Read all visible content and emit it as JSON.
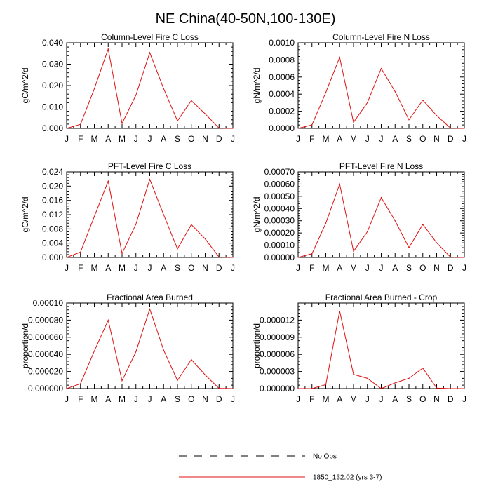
{
  "figure_title": "NE China(40-50N,100-130E)",
  "legend": {
    "entries": [
      {
        "label": "No Obs",
        "color": "#000000",
        "style": "dashed"
      },
      {
        "label": "1850_132.02 (yrs 3-7)",
        "color": "#e01010",
        "style": "solid"
      }
    ]
  },
  "chart_data": [
    {
      "type": "line",
      "title": "Column-Level Fire C Loss",
      "xlabel": "",
      "ylabel": "gC/m^2/d",
      "categories": [
        "J",
        "F",
        "M",
        "A",
        "M",
        "J",
        "J",
        "A",
        "S",
        "O",
        "N",
        "D",
        "J"
      ],
      "ylim": [
        0,
        0.04
      ],
      "yticks": [
        0,
        0.01,
        0.02,
        0.03,
        0.04
      ],
      "ytick_labels": [
        "0.000",
        "0.010",
        "0.020",
        "0.030",
        "0.040"
      ],
      "grid": false,
      "series": [
        {
          "name": "1850_132.02 (yrs 3-7)",
          "color": "#e01010",
          "values": [
            0.0,
            0.0019,
            0.0185,
            0.0371,
            0.0023,
            0.0155,
            0.0354,
            0.0186,
            0.0035,
            0.013,
            0.0068,
            0.0001,
            0.0
          ]
        }
      ]
    },
    {
      "type": "line",
      "title": "Column-Level Fire N Loss",
      "xlabel": "",
      "ylabel": "gN/m^2/d",
      "categories": [
        "J",
        "F",
        "M",
        "A",
        "M",
        "J",
        "J",
        "A",
        "S",
        "O",
        "N",
        "D",
        "J"
      ],
      "ylim": [
        0,
        0.001
      ],
      "yticks": [
        0,
        0.0002,
        0.0004,
        0.0006,
        0.0008,
        0.001
      ],
      "ytick_labels": [
        "0.0000",
        "0.0002",
        "0.0004",
        "0.0006",
        "0.0008",
        "0.0010"
      ],
      "grid": false,
      "series": [
        {
          "name": "1850_132.02 (yrs 3-7)",
          "color": "#e01010",
          "values": [
            0.0,
            4e-05,
            0.00042,
            0.00083,
            7e-05,
            0.0003,
            0.0007,
            0.00043,
            0.0001,
            0.00033,
            0.00015,
            3e-06,
            0.0
          ]
        }
      ]
    },
    {
      "type": "line",
      "title": "PFT-Level Fire C Loss",
      "xlabel": "",
      "ylabel": "gC/m^2/d",
      "categories": [
        "J",
        "F",
        "M",
        "A",
        "M",
        "J",
        "J",
        "A",
        "S",
        "O",
        "N",
        "D",
        "J"
      ],
      "ylim": [
        0,
        0.024
      ],
      "yticks": [
        0,
        0.004,
        0.008,
        0.012,
        0.016,
        0.02,
        0.024
      ],
      "ytick_labels": [
        "0.000",
        "0.004",
        "0.008",
        "0.012",
        "0.016",
        "0.020",
        "0.024"
      ],
      "grid": false,
      "series": [
        {
          "name": "1850_132.02 (yrs 3-7)",
          "color": "#e01010",
          "values": [
            0.0,
            0.0015,
            0.0115,
            0.0214,
            0.0011,
            0.0093,
            0.0219,
            0.012,
            0.0024,
            0.0092,
            0.0052,
            0.0001,
            0.0
          ]
        }
      ]
    },
    {
      "type": "line",
      "title": "PFT-Level Fire N Loss",
      "xlabel": "",
      "ylabel": "gN/m^2/d",
      "categories": [
        "J",
        "F",
        "M",
        "A",
        "M",
        "J",
        "J",
        "A",
        "S",
        "O",
        "N",
        "D",
        "J"
      ],
      "ylim": [
        0,
        0.0007
      ],
      "yticks": [
        0,
        0.0001,
        0.0002,
        0.0003,
        0.0004,
        0.0005,
        0.0006,
        0.0007
      ],
      "ytick_labels": [
        "0.00000",
        "0.00010",
        "0.00020",
        "0.00030",
        "0.00040",
        "0.00050",
        "0.00060",
        "0.00070"
      ],
      "grid": false,
      "series": [
        {
          "name": "1850_132.02 (yrs 3-7)",
          "color": "#e01010",
          "values": [
            0.0,
            3e-05,
            0.00028,
            0.0006,
            5e-05,
            0.00021,
            0.00049,
            0.0003,
            8e-05,
            0.00027,
            0.00012,
            2e-06,
            0.0
          ]
        }
      ]
    },
    {
      "type": "line",
      "title": "Fractional Area Burned",
      "xlabel": "",
      "ylabel": "proportion/d",
      "categories": [
        "J",
        "F",
        "M",
        "A",
        "M",
        "J",
        "J",
        "A",
        "S",
        "O",
        "N",
        "D",
        "J"
      ],
      "ylim": [
        0,
        0.0001
      ],
      "yticks": [
        0,
        2e-05,
        4e-05,
        6e-05,
        8e-05,
        0.0001
      ],
      "ytick_labels": [
        "0.000000",
        "0.000020",
        "0.000040",
        "0.000060",
        "0.000080",
        "0.00010"
      ],
      "grid": false,
      "series": [
        {
          "name": "1850_132.02 (yrs 3-7)",
          "color": "#e01010",
          "values": [
            0.0,
            5.8e-06,
            4.4e-05,
            8e-05,
            9.2e-06,
            4.3e-05,
            9.3e-05,
            4.5e-05,
            9.5e-06,
            3.4e-05,
            1.6e-05,
            3e-07,
            0.0
          ]
        }
      ]
    },
    {
      "type": "line",
      "title": "Fractional Area Burned - Crop",
      "xlabel": "",
      "ylabel": "proportion/d",
      "categories": [
        "J",
        "F",
        "M",
        "A",
        "M",
        "J",
        "J",
        "A",
        "S",
        "O",
        "N",
        "D",
        "J"
      ],
      "ylim": [
        0,
        1.5e-05
      ],
      "yticks": [
        0,
        3e-06,
        6e-06,
        9e-06,
        1.2e-05
      ],
      "ytick_labels": [
        "0.000000",
        "0.000003",
        "0.000006",
        "0.000009",
        "0.000012"
      ],
      "grid": false,
      "series": [
        {
          "name": "1850_132.02 (yrs 3-7)",
          "color": "#e01010",
          "values": [
            0.0,
            0.0,
            7e-07,
            1.36e-05,
            2.5e-06,
            1.8e-06,
            0.0,
            1e-06,
            1.8e-06,
            3.6e-06,
            1e-07,
            0.0,
            0.0
          ]
        }
      ]
    }
  ]
}
